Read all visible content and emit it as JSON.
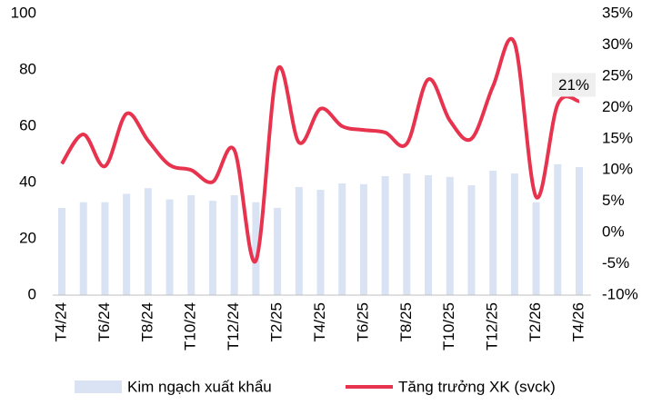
{
  "chart_data": {
    "type": "combo",
    "categories": [
      "T4/24",
      null,
      "T6/24",
      null,
      "T8/24",
      null,
      "T10/24",
      null,
      "T12/24",
      null,
      "T2/25",
      null,
      "T4/25",
      null,
      "T6/25",
      null,
      "T8/25",
      null,
      "T10/25",
      null,
      "T12/25",
      null,
      "T2/26",
      null,
      "T4/26"
    ],
    "series": [
      {
        "name": "Kim ngạch xuất khẩu",
        "type": "bar",
        "color": "#dae3f3",
        "values": [
          31,
          33,
          33,
          36,
          38,
          34,
          35.5,
          33.5,
          35.5,
          33,
          31,
          38.4,
          37.4,
          39.7,
          39.4,
          42.3,
          43.2,
          42.6,
          42,
          39,
          44.2,
          43.2,
          33,
          46.5,
          45.5
        ]
      },
      {
        "name": "Tăng trưởng XK (svck)",
        "type": "line",
        "color": "#e8334f",
        "axis": "y2",
        "values": [
          11,
          15.7,
          10.6,
          19,
          14.7,
          10.8,
          10,
          8.1,
          13.2,
          -4.5,
          26,
          14.4,
          19.8,
          17,
          16.4,
          16,
          14.2,
          24.5,
          17.9,
          15,
          23.4,
          30.3,
          5.7,
          20.5,
          21
        ],
        "value_labels": [
          null,
          null,
          null,
          null,
          null,
          null,
          null,
          null,
          null,
          null,
          null,
          null,
          null,
          null,
          null,
          null,
          null,
          null,
          null,
          null,
          null,
          null,
          null,
          null,
          "21%"
        ]
      }
    ],
    "ylim": [
      0,
      100
    ],
    "yticks": [
      0,
      20,
      40,
      60,
      80,
      100
    ],
    "y2lim": [
      -10,
      35
    ],
    "y2ticks": [
      {
        "value": -10,
        "label": "-10%"
      },
      {
        "value": -5,
        "label": "-5%"
      },
      {
        "value": 0,
        "label": "0%"
      },
      {
        "value": 5,
        "label": "5%"
      },
      {
        "value": 10,
        "label": "10%"
      },
      {
        "value": 15,
        "label": "15%"
      },
      {
        "value": 20,
        "label": "20%"
      },
      {
        "value": 25,
        "label": "25%"
      },
      {
        "value": 30,
        "label": "30%"
      },
      {
        "value": 35,
        "label": "35%"
      }
    ],
    "legend": "bottom"
  }
}
